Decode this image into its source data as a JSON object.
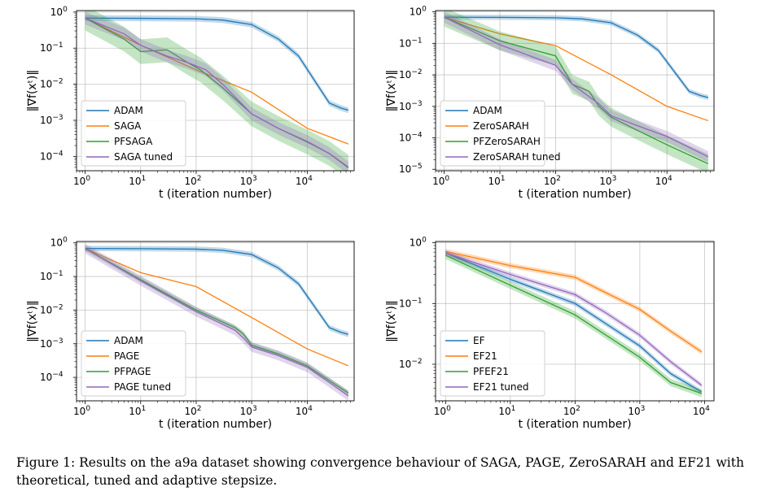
{
  "caption": "Figure 1: Results on the a9a dataset showing convergence behaviour of SAGA, PAGE, ZeroSARAH and EF21 with theoretical, tuned and adaptive stepsize.",
  "colors": {
    "blue": "#1f77b4",
    "orange": "#ff7f0e",
    "green": "#2ca02c",
    "purple": "#9467bd"
  },
  "chart_data": [
    {
      "type": "line",
      "xscale": "log",
      "yscale": "log",
      "xlabel": "t (iteration number)",
      "ylabel": "‖∇f(xᵗ)‖",
      "xlim": [
        0.7,
        70000
      ],
      "ylim": [
        4e-05,
        1.1
      ],
      "xticks": [
        {
          "v": 1,
          "b": "10",
          "e": "0"
        },
        {
          "v": 10,
          "b": "10",
          "e": "1"
        },
        {
          "v": 100,
          "b": "10",
          "e": "2"
        },
        {
          "v": 1000,
          "b": "10",
          "e": "3"
        },
        {
          "v": 10000,
          "b": "10",
          "e": "4"
        }
      ],
      "yticks": [
        {
          "v": 1,
          "b": "10",
          "e": "0"
        },
        {
          "v": 0.1,
          "b": "10",
          "e": "−1"
        },
        {
          "v": 0.01,
          "b": "10",
          "e": "−2"
        },
        {
          "v": 0.001,
          "b": "10",
          "e": "−3"
        },
        {
          "v": 0.0001,
          "b": "10",
          "e": "−4"
        }
      ],
      "grid": true,
      "legend": "lower-left",
      "series": [
        {
          "name": "ADAM",
          "color": "#1f77b4",
          "x": [
            1,
            10,
            100,
            300,
            1000,
            3000,
            7000,
            15000,
            25000,
            40000,
            55000
          ],
          "y": [
            0.68,
            0.67,
            0.65,
            0.6,
            0.45,
            0.18,
            0.06,
            0.01,
            0.003,
            0.0022,
            0.0019
          ],
          "band": 1.2
        },
        {
          "name": "SAGA",
          "color": "#ff7f0e",
          "x": [
            1,
            10,
            100,
            1000,
            10000,
            55000
          ],
          "y": [
            0.68,
            0.12,
            0.025,
            0.006,
            0.0006,
            0.00022
          ],
          "band": 1.0
        },
        {
          "name": "PFSAGA",
          "color": "#2ca02c",
          "x": [
            1,
            5,
            10,
            30,
            70,
            120,
            180,
            300,
            1000,
            3000,
            10000,
            25000,
            55000
          ],
          "y": [
            0.68,
            0.18,
            0.08,
            0.09,
            0.04,
            0.025,
            0.015,
            0.008,
            0.0015,
            0.0006,
            0.00025,
            0.00012,
            5e-05
          ],
          "band": 2.2
        },
        {
          "name": "SAGA tuned",
          "color": "#9467bd",
          "x": [
            1,
            5,
            10,
            30,
            70,
            150,
            300,
            1000,
            3000,
            10000,
            25000,
            55000
          ],
          "y": [
            0.68,
            0.25,
            0.12,
            0.06,
            0.04,
            0.025,
            0.01,
            0.0015,
            0.0006,
            0.00026,
            0.00012,
            4.8e-05
          ],
          "band": 1.5
        }
      ]
    },
    {
      "type": "line",
      "xscale": "log",
      "yscale": "log",
      "xlabel": "t (iteration number)",
      "ylabel": "‖∇f(xᵗ)‖",
      "xlim": [
        0.7,
        70000
      ],
      "ylim": [
        9e-06,
        1.1
      ],
      "xticks": [
        {
          "v": 1,
          "b": "10",
          "e": "0"
        },
        {
          "v": 10,
          "b": "10",
          "e": "1"
        },
        {
          "v": 100,
          "b": "10",
          "e": "2"
        },
        {
          "v": 1000,
          "b": "10",
          "e": "3"
        },
        {
          "v": 10000,
          "b": "10",
          "e": "4"
        }
      ],
      "yticks": [
        {
          "v": 1,
          "b": "10",
          "e": "0"
        },
        {
          "v": 0.1,
          "b": "10",
          "e": "−1"
        },
        {
          "v": 0.01,
          "b": "10",
          "e": "−2"
        },
        {
          "v": 0.001,
          "b": "10",
          "e": "−3"
        },
        {
          "v": 0.0001,
          "b": "10",
          "e": "−4"
        },
        {
          "v": 1e-05,
          "b": "10",
          "e": "−5"
        }
      ],
      "grid": true,
      "legend": "lower-left",
      "series": [
        {
          "name": "ADAM",
          "color": "#1f77b4",
          "x": [
            1,
            10,
            100,
            300,
            1000,
            3000,
            7000,
            15000,
            25000,
            40000,
            55000
          ],
          "y": [
            0.68,
            0.67,
            0.65,
            0.6,
            0.45,
            0.18,
            0.06,
            0.01,
            0.003,
            0.0022,
            0.0019
          ],
          "band": 1.2
        },
        {
          "name": "ZeroSARAH",
          "color": "#ff7f0e",
          "x": [
            1,
            10,
            100,
            1000,
            10000,
            55000
          ],
          "y": [
            0.68,
            0.2,
            0.085,
            0.01,
            0.001,
            0.00035
          ],
          "band": 1.0
        },
        {
          "name": "PFZeroSARAH",
          "color": "#2ca02c",
          "x": [
            1,
            10,
            100,
            200,
            400,
            600,
            1000,
            3000,
            10000,
            55000
          ],
          "y": [
            0.68,
            0.12,
            0.04,
            0.005,
            0.003,
            0.001,
            0.00045,
            0.00017,
            6e-05,
            1.5e-05
          ],
          "band": 2.0
        },
        {
          "name": "ZeroSARAH tuned",
          "color": "#9467bd",
          "x": [
            1,
            10,
            100,
            200,
            600,
            1000,
            3000,
            10000,
            55000
          ],
          "y": [
            0.68,
            0.09,
            0.02,
            0.005,
            0.0012,
            0.0005,
            0.00024,
            0.00011,
            2.5e-05
          ],
          "band": 1.5
        }
      ]
    },
    {
      "type": "line",
      "xscale": "log",
      "yscale": "log",
      "xlabel": "t (iteration number)",
      "ylabel": "‖∇f(xᵗ)‖",
      "xlim": [
        0.7,
        70000
      ],
      "ylim": [
        2e-05,
        1.1
      ],
      "xticks": [
        {
          "v": 1,
          "b": "10",
          "e": "0"
        },
        {
          "v": 10,
          "b": "10",
          "e": "1"
        },
        {
          "v": 100,
          "b": "10",
          "e": "2"
        },
        {
          "v": 1000,
          "b": "10",
          "e": "3"
        },
        {
          "v": 10000,
          "b": "10",
          "e": "4"
        }
      ],
      "yticks": [
        {
          "v": 1,
          "b": "10",
          "e": "0"
        },
        {
          "v": 0.1,
          "b": "10",
          "e": "−1"
        },
        {
          "v": 0.01,
          "b": "10",
          "e": "−2"
        },
        {
          "v": 0.001,
          "b": "10",
          "e": "−3"
        },
        {
          "v": 0.0001,
          "b": "10",
          "e": "−4"
        }
      ],
      "grid": true,
      "legend": "lower-left",
      "series": [
        {
          "name": "ADAM",
          "color": "#1f77b4",
          "x": [
            1,
            10,
            100,
            300,
            1000,
            3000,
            7000,
            15000,
            25000,
            40000,
            55000
          ],
          "y": [
            0.68,
            0.67,
            0.65,
            0.6,
            0.45,
            0.18,
            0.06,
            0.01,
            0.003,
            0.0022,
            0.0019
          ],
          "band": 1.2
        },
        {
          "name": "PAGE",
          "color": "#ff7f0e",
          "x": [
            1,
            10,
            100,
            1000,
            10000,
            55000
          ],
          "y": [
            0.68,
            0.13,
            0.05,
            0.006,
            0.0007,
            0.00022
          ],
          "band": 1.0
        },
        {
          "name": "PFPAGE",
          "color": "#2ca02c",
          "x": [
            1,
            10,
            100,
            500,
            700,
            1000,
            3000,
            10000,
            25000,
            55000
          ],
          "y": [
            0.68,
            0.08,
            0.01,
            0.003,
            0.002,
            0.0009,
            0.0005,
            0.00022,
            8e-05,
            3.4e-05
          ],
          "band": 1.2
        },
        {
          "name": "PAGE tuned",
          "color": "#9467bd",
          "x": [
            1,
            10,
            100,
            500,
            700,
            1000,
            3000,
            10000,
            25000,
            55000
          ],
          "y": [
            0.68,
            0.075,
            0.009,
            0.0025,
            0.0015,
            0.0008,
            0.00045,
            0.0002,
            7e-05,
            2.8e-05
          ],
          "band": 1.4
        }
      ]
    },
    {
      "type": "line",
      "xscale": "log",
      "yscale": "log",
      "xlabel": "t (iteration number)",
      "ylabel": "‖∇f(xᵗ)‖",
      "xlim": [
        0.7,
        14000
      ],
      "ylim": [
        0.0025,
        1.05
      ],
      "xticks": [
        {
          "v": 1,
          "b": "10",
          "e": "0"
        },
        {
          "v": 10,
          "b": "10",
          "e": "1"
        },
        {
          "v": 100,
          "b": "10",
          "e": "2"
        },
        {
          "v": 1000,
          "b": "10",
          "e": "3"
        },
        {
          "v": 10000,
          "b": "10",
          "e": "4"
        }
      ],
      "yticks": [
        {
          "v": 1,
          "b": "10",
          "e": "0"
        },
        {
          "v": 0.1,
          "b": "10",
          "e": "−1"
        },
        {
          "v": 0.01,
          "b": "10",
          "e": "−2"
        }
      ],
      "grid": true,
      "legend": "lower-left",
      "series": [
        {
          "name": "EF",
          "color": "#1f77b4",
          "x": [
            1,
            10,
            100,
            1000,
            3000,
            9000
          ],
          "y": [
            0.68,
            0.25,
            0.1,
            0.02,
            0.007,
            0.0035
          ],
          "band": 1.1
        },
        {
          "name": "EF21",
          "color": "#ff7f0e",
          "x": [
            1,
            10,
            100,
            300,
            1000,
            3000,
            9000
          ],
          "y": [
            0.72,
            0.42,
            0.27,
            0.15,
            0.08,
            0.035,
            0.016
          ],
          "band": 1.1
        },
        {
          "name": "PFEF21",
          "color": "#2ca02c",
          "x": [
            1,
            10,
            100,
            1000,
            3000,
            9000
          ],
          "y": [
            0.62,
            0.2,
            0.065,
            0.013,
            0.005,
            0.0033
          ],
          "band": 1.15
        },
        {
          "name": "EF21 tuned",
          "color": "#9467bd",
          "x": [
            1,
            10,
            100,
            300,
            1000,
            3000,
            9000
          ],
          "y": [
            0.68,
            0.3,
            0.14,
            0.07,
            0.03,
            0.011,
            0.0045
          ],
          "band": 1.1
        }
      ]
    }
  ]
}
